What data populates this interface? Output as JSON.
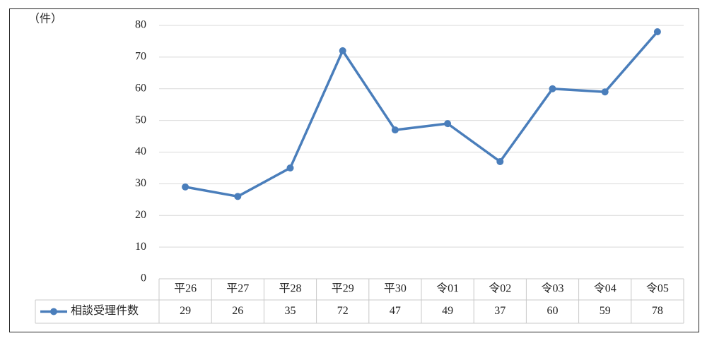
{
  "chart_data": {
    "type": "line",
    "ylabel": "（件）",
    "categories": [
      "平26",
      "平27",
      "平28",
      "平29",
      "平30",
      "令01",
      "令02",
      "令03",
      "令04",
      "令05"
    ],
    "series": [
      {
        "name": "相談受理件数",
        "color": "#4a7ebb",
        "values": [
          29,
          26,
          35,
          72,
          47,
          49,
          37,
          60,
          59,
          78
        ]
      }
    ],
    "ylim": [
      0,
      80
    ],
    "yticks": [
      0,
      10,
      20,
      30,
      40,
      50,
      60,
      70,
      80
    ],
    "grid": true,
    "data_table": true
  }
}
